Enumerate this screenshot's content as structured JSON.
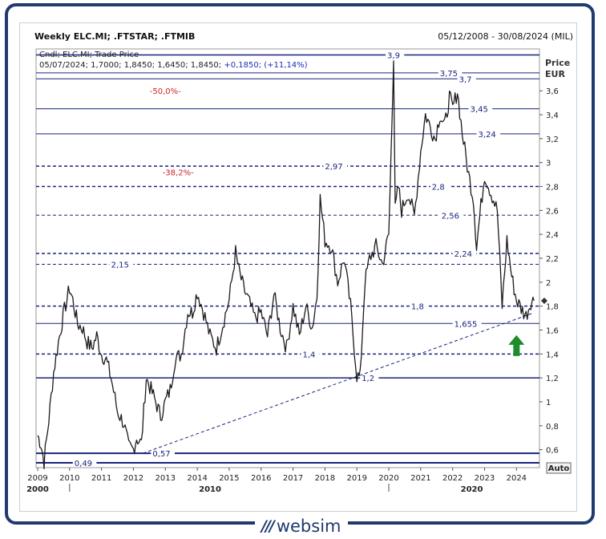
{
  "header": {
    "title": "Weekly ELC.MI; .FTSTAR; .FTMIB",
    "date_range": "05/12/2008 - 30/08/2024 (MIL)"
  },
  "legend": {
    "line1": "Cndl; ELC.MI; Trade Price",
    "line2_prefix": "05/07/2024; 1,7000; 1,8450; 1,6450; 1,8450; ",
    "line2_change": "+0,1850; (+11,14%)"
  },
  "axis": {
    "price_label": "Price",
    "currency_label": "EUR",
    "auto_button": "Auto"
  },
  "logo": {
    "mark": "///",
    "text": "websim"
  },
  "chart_data": {
    "type": "line",
    "title": "Weekly ELC.MI; .FTSTAR; .FTMIB",
    "ylabel": "Price EUR",
    "ylim": [
      0.45,
      3.95
    ],
    "xlim": [
      2008.95,
      2024.72
    ],
    "y_ticks": [
      0.6,
      0.8,
      1,
      1.2,
      1.4,
      1.6,
      1.8,
      2,
      2.2,
      2.4,
      2.6,
      2.8,
      3,
      3.2,
      3.4,
      3.6
    ],
    "y_tick_labels": [
      "0,6",
      "0,8",
      "1",
      "1,2",
      "1,4",
      "1,6",
      "1,8",
      "2",
      "2,2",
      "2,4",
      "2,6",
      "2,8",
      "3",
      "3,2",
      "3,4",
      "3,6"
    ],
    "x_ticks": [
      "2009",
      "2010",
      "2011",
      "2012",
      "2013",
      "2014",
      "2015",
      "2016",
      "2017",
      "2018",
      "2019",
      "2020",
      "2021",
      "2022",
      "2023",
      "2024"
    ],
    "decades": [
      "2000",
      "2010",
      "2020"
    ],
    "last_price": 1.845,
    "series": [
      {
        "x": [
          2009.0,
          2009.1,
          2009.2,
          2009.35,
          2009.5,
          2009.65,
          2009.8,
          2010.0,
          2010.1,
          2010.25,
          2010.4,
          2010.55,
          2010.7,
          2010.85,
          2011.0,
          2011.15,
          2011.3,
          2011.5,
          2011.7,
          2011.85,
          2012.0,
          2012.1,
          2012.25,
          2012.4,
          2012.55,
          2012.7,
          2012.85,
          2013.0,
          2013.15,
          2013.3,
          2013.5,
          2013.7,
          2013.85,
          2014.0,
          2014.2,
          2014.4,
          2014.6,
          2014.8,
          2015.0,
          2015.2,
          2015.3,
          2015.45,
          2015.6,
          2015.8,
          2016.0,
          2016.2,
          2016.4,
          2016.6,
          2016.8,
          2017.0,
          2017.2,
          2017.4,
          2017.6,
          2017.75,
          2017.85,
          2018.0,
          2018.2,
          2018.4,
          2018.6,
          2018.8,
          2019.0,
          2019.1,
          2019.25,
          2019.4,
          2019.6,
          2019.8,
          2020.0,
          2020.1,
          2020.15,
          2020.2,
          2020.3,
          2020.4,
          2020.6,
          2020.8,
          2021.0,
          2021.15,
          2021.3,
          2021.45,
          2021.6,
          2021.75,
          2021.9,
          2022.0,
          2022.15,
          2022.3,
          2022.5,
          2022.65,
          2022.75,
          2022.85,
          2023.0,
          2023.2,
          2023.4,
          2023.55,
          2023.7,
          2023.85,
          2024.0,
          2024.15,
          2024.3,
          2024.45,
          2024.55
        ],
        "values": [
          0.72,
          0.65,
          0.5,
          0.85,
          1.25,
          1.5,
          1.72,
          1.95,
          1.85,
          1.65,
          1.62,
          1.5,
          1.45,
          1.55,
          1.4,
          1.35,
          1.2,
          0.92,
          0.82,
          0.62,
          0.6,
          0.7,
          0.65,
          1.2,
          1.1,
          1.0,
          0.88,
          1.0,
          1.1,
          1.35,
          1.4,
          1.75,
          1.75,
          1.92,
          1.75,
          1.55,
          1.45,
          1.65,
          1.85,
          2.25,
          2.1,
          1.95,
          1.85,
          1.7,
          1.75,
          1.55,
          1.9,
          1.62,
          1.45,
          1.8,
          1.55,
          1.8,
          1.62,
          1.88,
          2.7,
          2.35,
          2.3,
          2.0,
          2.2,
          1.8,
          1.22,
          1.2,
          2.0,
          2.2,
          2.3,
          2.15,
          2.4,
          3.35,
          3.9,
          2.6,
          2.8,
          2.6,
          2.75,
          2.55,
          3.1,
          3.4,
          3.3,
          3.2,
          3.4,
          3.3,
          3.55,
          3.45,
          3.6,
          3.25,
          2.9,
          2.7,
          2.3,
          2.55,
          2.9,
          2.75,
          2.6,
          1.8,
          2.35,
          2.05,
          1.85,
          1.78,
          1.72,
          1.84,
          1.845
        ]
      }
    ],
    "levels": [
      {
        "value": 3.9,
        "label": "3,9",
        "style": "solid",
        "weight": 1.5,
        "label_x": 2019.95
      },
      {
        "value": 3.75,
        "label": "3,75",
        "style": "solid",
        "weight": 1,
        "label_x": 2021.6
      },
      {
        "value": 3.7,
        "label": "3,7",
        "style": "solid",
        "weight": 1,
        "label_x": 2022.2
      },
      {
        "value": 3.45,
        "label": "3,45",
        "style": "solid",
        "weight": 1,
        "label_x": 2022.55
      },
      {
        "value": 3.24,
        "label": "3,24",
        "style": "solid",
        "weight": 1,
        "label_x": 2022.8
      },
      {
        "value": 2.97,
        "label": "2,97",
        "style": "dashed",
        "weight": 1.5,
        "label_x": 2018.0
      },
      {
        "value": 2.8,
        "label": "2,8",
        "style": "dashed",
        "weight": 1.5,
        "label_x": 2021.35
      },
      {
        "value": 2.56,
        "label": "2,56",
        "style": "dashed",
        "weight": 1,
        "label_x": 2021.65
      },
      {
        "value": 2.24,
        "label": "2,24",
        "style": "dashed",
        "weight": 1.5,
        "label_x": 2022.05
      },
      {
        "value": 2.15,
        "label": "2,15",
        "style": "dashed",
        "weight": 1,
        "label_x": 2011.3
      },
      {
        "value": 1.8,
        "label": "1,8",
        "style": "dashed",
        "weight": 1.5,
        "label_x": 2020.7
      },
      {
        "value": 1.655,
        "label": "1,655",
        "style": "solid",
        "weight": 1,
        "label_x": 2022.05
      },
      {
        "value": 1.4,
        "label": "1,4",
        "style": "dashed",
        "weight": 1.5,
        "label_x": 2017.3
      },
      {
        "value": 1.2,
        "label": "1,2",
        "style": "solid",
        "weight": 1.5,
        "label_x": 2019.15
      },
      {
        "value": 0.57,
        "label": "0,57",
        "style": "solid",
        "weight": 2,
        "label_x": 2012.6
      },
      {
        "value": 0.49,
        "label": "0,49",
        "style": "solid",
        "weight": 2,
        "label_x": 2010.15
      }
    ],
    "fib_annotations": [
      {
        "label": "-50,0%-",
        "x": 2013.0,
        "y": 3.6
      },
      {
        "label": "-38,2%-",
        "x": 2013.4,
        "y": 2.92
      }
    ],
    "trendline": {
      "x1": 2012.3,
      "y1": 0.57,
      "x2": 2024.5,
      "y2": 1.74,
      "label": ""
    },
    "arrow": {
      "x": 2024.0,
      "y": 1.45,
      "direction": "up",
      "color": "#1e8c2a"
    },
    "colors": {
      "line": "#1b1b1b",
      "level": "#1a237e",
      "fib_text": "#d21f1f",
      "change_text": "#1a2fb8",
      "frame": "#1f3a6e"
    }
  }
}
